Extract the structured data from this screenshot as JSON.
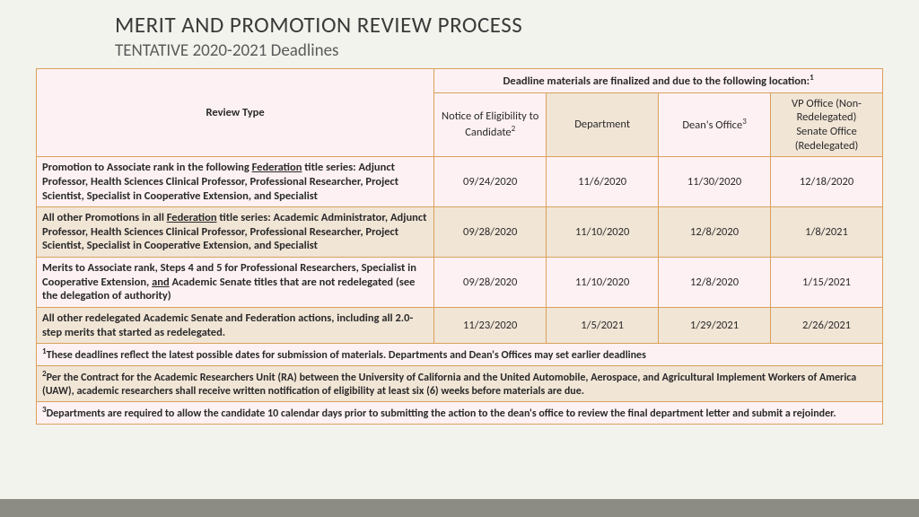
{
  "title": "MERIT AND PROMOTION REVIEW PROCESS",
  "subtitle": "TENTATIVE 2020-2021 Deadlines",
  "table": {
    "header_top": "Deadline materials are finalized and due to the following location:",
    "col_review": "Review Type",
    "col_notice_a": "Notice of Eligibility to Candidate",
    "col_dept": "Department",
    "col_dean_a": "Dean's Office",
    "col_vp_a": "VP Office (Non-Redelegated)",
    "col_vp_b": "Senate Office (Redelegated)",
    "r1_a": "Promotion to Associate rank in the following ",
    "r1_u": "Federation",
    "r1_b": " title series: Adjunct Professor, Health Sciences Clinical Professor, Professional Researcher, Project Scientist, Specialist in Cooperative Extension, and Specialist",
    "r1d1": "09/24/2020",
    "r1d2": "11/6/2020",
    "r1d3": "11/30/2020",
    "r1d4": "12/18/2020",
    "r2_a": "All other Promotions in all ",
    "r2_u": "Federation",
    "r2_b": " title series: Academic Administrator, Adjunct Professor, Health Sciences Clinical Professor, Professional Researcher, Project Scientist, Specialist in Cooperative Extension, and Specialist",
    "r2d1": "09/28/2020",
    "r2d2": "11/10/2020",
    "r2d3": "12/8/2020",
    "r2d4": "1/8/2021",
    "r3_a": "Merits to Associate rank, Steps 4 and 5 for Professional Researchers, Specialist in Cooperative Extension, ",
    "r3_u": "and",
    "r3_b": " Academic Senate titles that are not redelegated (see the delegation of authority)",
    "r3d1": "09/28/2020",
    "r3d2": "11/10/2020",
    "r3d3": "12/8/2020",
    "r3d4": "1/15/2021",
    "r4_a": "All other redelegated Academic Senate and Federation actions, including all 2.0-step merits that started as redelegated.",
    "r4d1": "11/23/2020",
    "r4d2": "1/5/2021",
    "r4d3": "1/29/2021",
    "r4d4": "2/26/2021",
    "fn1": "These deadlines reflect the latest possible dates for submission of materials. Departments and Dean's Offices may set earlier deadlines",
    "fn2": "Per the Contract for the Academic Researchers Unit (RA) between the University of California and the United Automobile, Aerospace, and Agricultural Implement Workers of America (UAW), academic researchers shall receive written notification of eligibility at least six (6) weeks before materials are due.",
    "fn3": "Departments are required to allow the candidate 10 calendar days prior to submitting the action to the dean's office to review the final department letter and submit a rejoinder."
  },
  "colors": {
    "border": "#d9a15b",
    "pink": "#fdf1f3",
    "tan": "#f1e5d6",
    "bg": "#f3f3ed",
    "footer": "#8c8c84"
  }
}
